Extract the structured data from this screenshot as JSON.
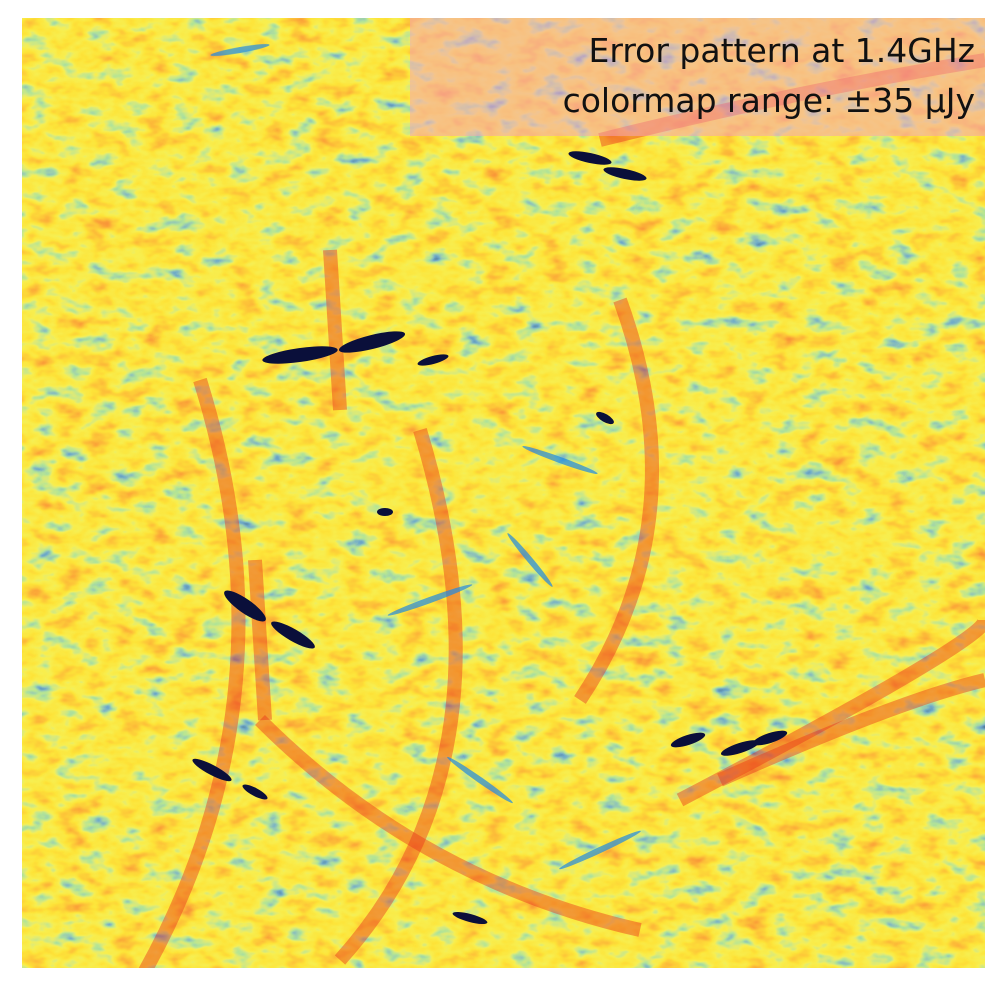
{
  "caption": {
    "line1": "Error pattern at 1.4GHz",
    "line2": "colormap range: ±35 μJy"
  }
}
